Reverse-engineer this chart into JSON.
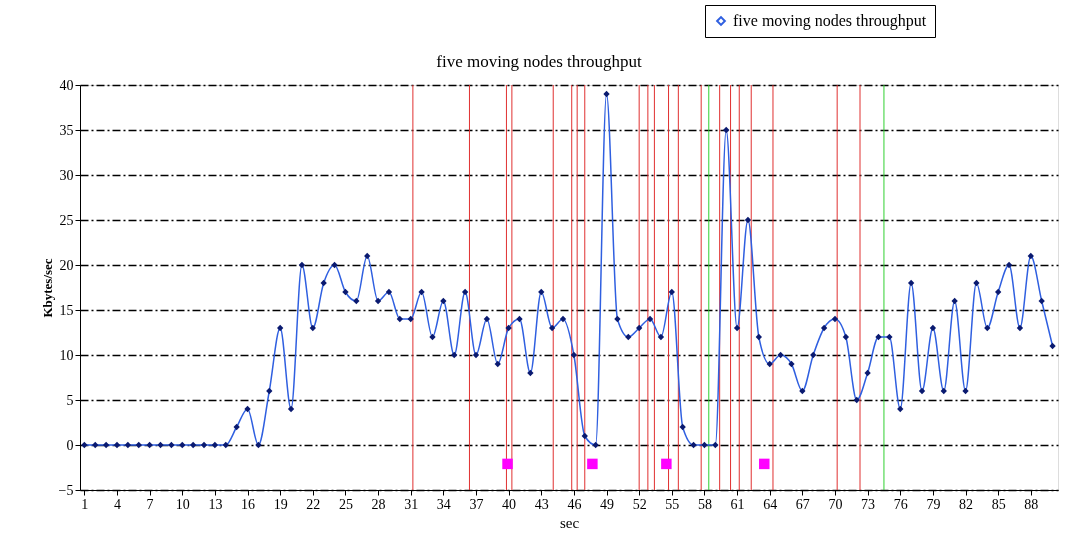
{
  "chart_data": {
    "type": "line",
    "title": "five moving nodes throughput",
    "xlabel": "sec",
    "ylabel": "Kbytes/sec",
    "xlim": [
      0.6,
      90.5
    ],
    "xticks": [
      1,
      4,
      7,
      10,
      13,
      16,
      19,
      22,
      25,
      28,
      31,
      34,
      37,
      40,
      43,
      46,
      49,
      52,
      55,
      58,
      61,
      64,
      67,
      70,
      73,
      76,
      79,
      82,
      85,
      88
    ],
    "ylim": [
      -5,
      40
    ],
    "yticks": [
      -5,
      0,
      5,
      10,
      15,
      20,
      25,
      30,
      35,
      40
    ],
    "grid": "y",
    "legend": "top right",
    "series": [
      {
        "name": "five moving nodes throughput",
        "marker": "diamond",
        "color": "#2f5fe0",
        "x": [
          1,
          2,
          3,
          4,
          5,
          6,
          7,
          8,
          9,
          10,
          11,
          12,
          13,
          14,
          15,
          16,
          17,
          18,
          19,
          20,
          21,
          22,
          23,
          24,
          25,
          26,
          27,
          28,
          29,
          30,
          31,
          32,
          33,
          34,
          35,
          36,
          37,
          38,
          39,
          40,
          41,
          42,
          43,
          44,
          45,
          46,
          47,
          48,
          49,
          50,
          51,
          52,
          53,
          54,
          55,
          56,
          57,
          58,
          59,
          60,
          61,
          62,
          63,
          64,
          65,
          66,
          67,
          68,
          69,
          70,
          71,
          72,
          73,
          74,
          75,
          76,
          77,
          78,
          79,
          80,
          81,
          82,
          83,
          84,
          85,
          86,
          87,
          88,
          89,
          90
        ],
        "values": [
          0,
          0,
          0,
          0,
          0,
          0,
          0,
          0,
          0,
          0,
          0,
          0,
          0,
          0,
          2,
          4,
          0,
          6,
          13,
          4,
          20,
          13,
          18,
          20,
          17,
          16,
          21,
          16,
          17,
          14,
          14,
          17,
          12,
          16,
          10,
          17,
          10,
          14,
          9,
          13,
          14,
          8,
          17,
          13,
          14,
          10,
          1,
          0,
          39,
          14,
          12,
          13,
          14,
          12,
          17,
          2,
          0,
          0,
          0,
          35,
          13,
          25,
          12,
          9,
          10,
          9,
          6,
          10,
          13,
          14,
          12,
          5,
          8,
          12,
          12,
          4,
          18,
          6,
          13,
          6,
          16,
          6,
          18,
          13,
          17,
          20,
          13,
          21,
          16,
          11
        ]
      },
      {
        "type": "scatter",
        "marker": "square",
        "color": "#ff00ff",
        "x": [
          39.9,
          47.7,
          54.5,
          63.5
        ],
        "values": [
          -2.1,
          -2.1,
          -2.1,
          -2.1
        ]
      }
    ],
    "ref_lines": [
      {
        "axis": "x",
        "value": 31.2,
        "color": "#e03030"
      },
      {
        "axis": "x",
        "value": 36.4,
        "color": "#e03030"
      },
      {
        "axis": "x",
        "value": 39.8,
        "color": "#e03030"
      },
      {
        "axis": "x",
        "value": 40.3,
        "color": "#e03030"
      },
      {
        "axis": "x",
        "value": 44.1,
        "color": "#e03030"
      },
      {
        "axis": "x",
        "value": 45.8,
        "color": "#e03030"
      },
      {
        "axis": "x",
        "value": 46.3,
        "color": "#e03030"
      },
      {
        "axis": "x",
        "value": 47.0,
        "color": "#e03030"
      },
      {
        "axis": "x",
        "value": 52.0,
        "color": "#e03030"
      },
      {
        "axis": "x",
        "value": 52.8,
        "color": "#e03030"
      },
      {
        "axis": "x",
        "value": 53.4,
        "color": "#e03030"
      },
      {
        "axis": "x",
        "value": 54.7,
        "color": "#e03030"
      },
      {
        "axis": "x",
        "value": 55.6,
        "color": "#e03030"
      },
      {
        "axis": "x",
        "value": 57.7,
        "color": "#e03030"
      },
      {
        "axis": "x",
        "value": 58.4,
        "color": "#30d030"
      },
      {
        "axis": "x",
        "value": 59.4,
        "color": "#e03030"
      },
      {
        "axis": "x",
        "value": 60.4,
        "color": "#e03030"
      },
      {
        "axis": "x",
        "value": 61.2,
        "color": "#e03030"
      },
      {
        "axis": "x",
        "value": 62.3,
        "color": "#e03030"
      },
      {
        "axis": "x",
        "value": 64.3,
        "color": "#e03030"
      },
      {
        "axis": "x",
        "value": 70.2,
        "color": "#e03030"
      },
      {
        "axis": "x",
        "value": 72.3,
        "color": "#e03030"
      },
      {
        "axis": "x",
        "value": 74.5,
        "color": "#30d030"
      }
    ]
  }
}
